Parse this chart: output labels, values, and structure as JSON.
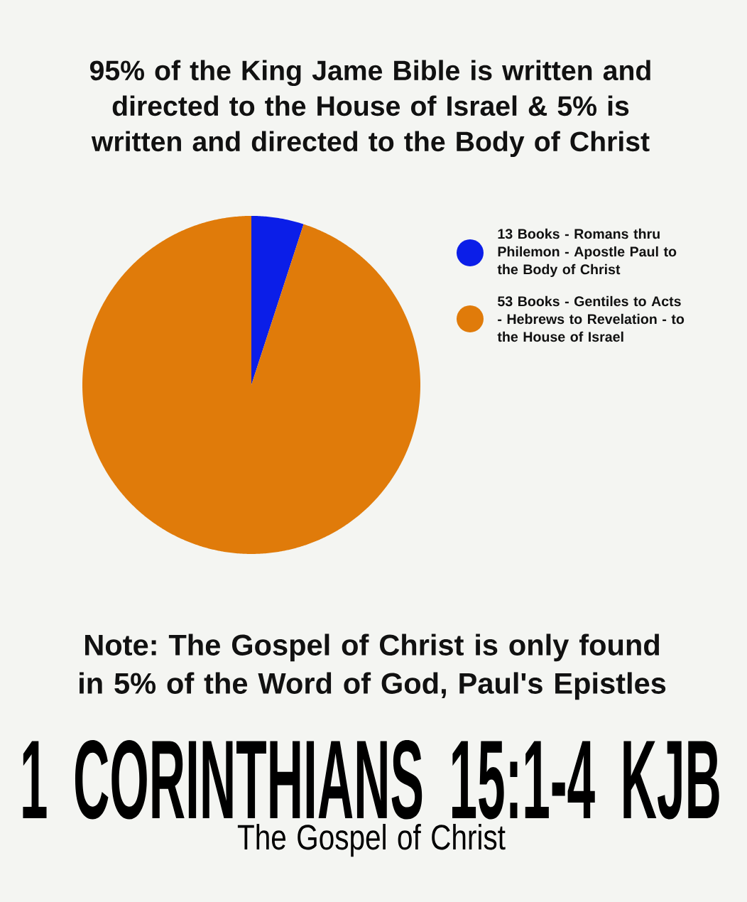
{
  "chart_data": {
    "type": "pie",
    "title": "95% of the King Jame Bible is written and directed to the House of Israel & 5% is written and directed to the Body of Christ",
    "categories": [
      "13 Books - Romans thru Philemon - Apostle Paul to the Body of Christ",
      "53 Books - Gentiles to Acts - Hebrews to Revelation - to the House of Israel"
    ],
    "values": [
      5,
      95
    ],
    "colors": [
      "#0b1ee8",
      "#e07b0a"
    ],
    "legend": "right",
    "annotations": [
      "Note: The Gospel of Christ is only found in 5% of the Word of God, Paul's Epistles",
      "1 CORINTHIANS 15:1-4 KJB",
      "The Gospel of Christ"
    ]
  }
}
